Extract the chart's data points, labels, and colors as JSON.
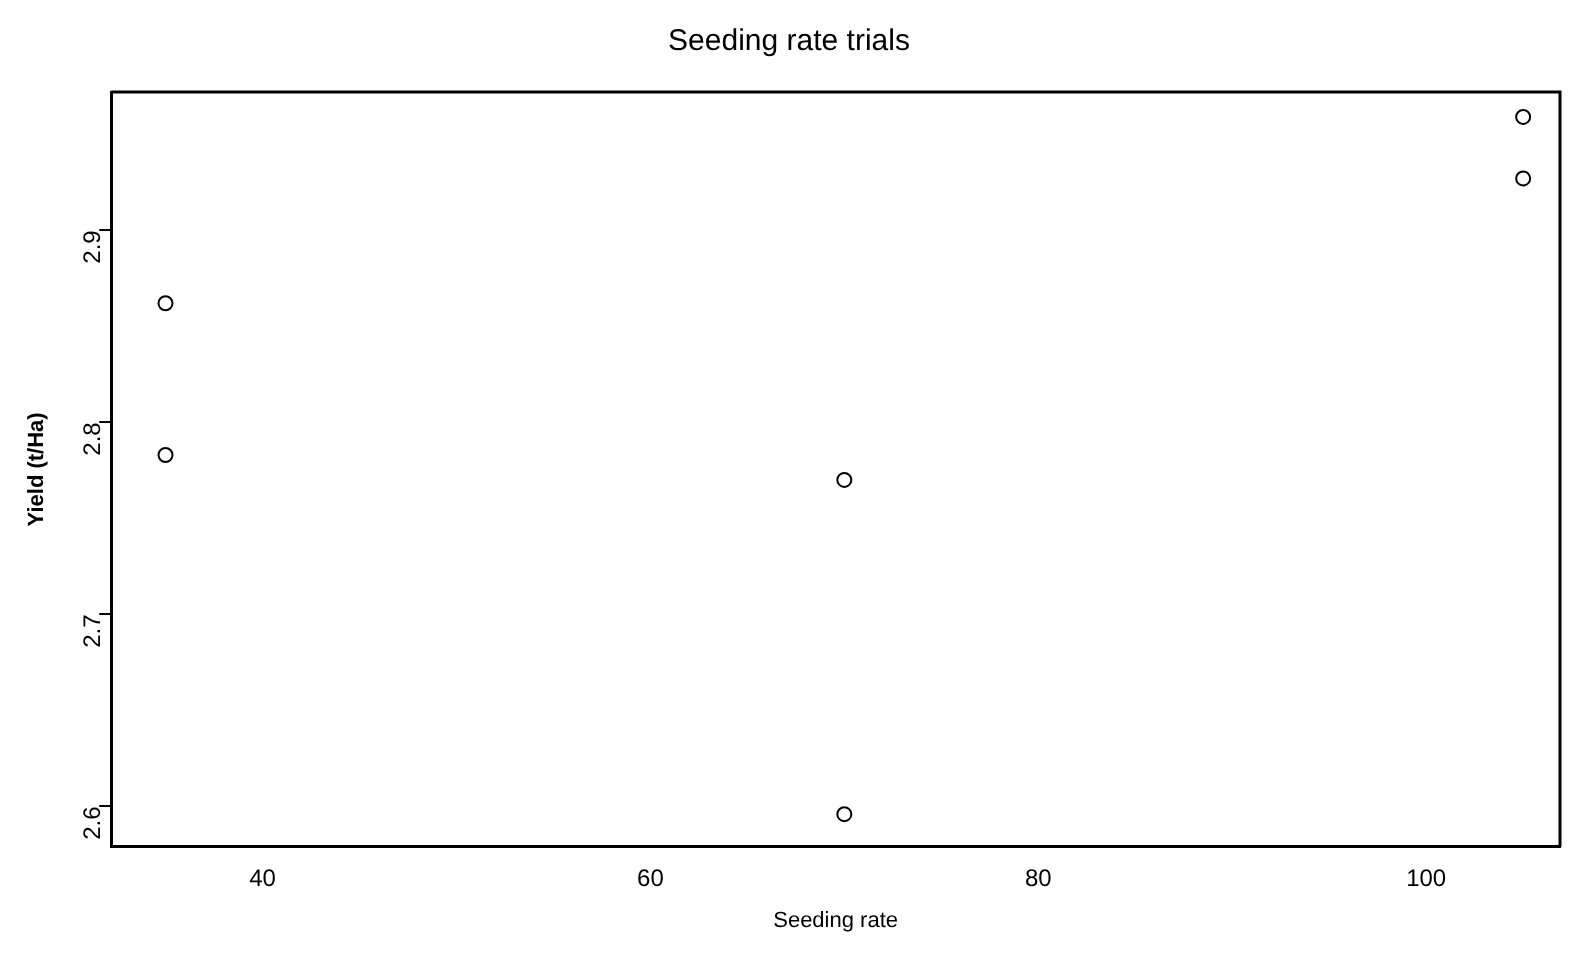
{
  "chart_data": {
    "type": "scatter",
    "title": "Seeding rate trials",
    "xlabel": "Seeding rate",
    "ylabel": "Yield (t/Ha)",
    "x": [
      35,
      35,
      70,
      70,
      105,
      105
    ],
    "series": [
      {
        "color": "#000000",
        "values": [
          2.862,
          2.783,
          2.77,
          2.596,
          2.959,
          2.927
        ]
      }
    ],
    "xlim": [
      32.2,
      106.9
    ],
    "xticks": [
      40,
      60,
      80,
      100
    ],
    "ylim": [
      2.579,
      2.972
    ],
    "yticks": [
      2.6,
      2.7,
      2.8,
      2.9
    ],
    "marker": "circle",
    "grid": false,
    "legend": false
  }
}
